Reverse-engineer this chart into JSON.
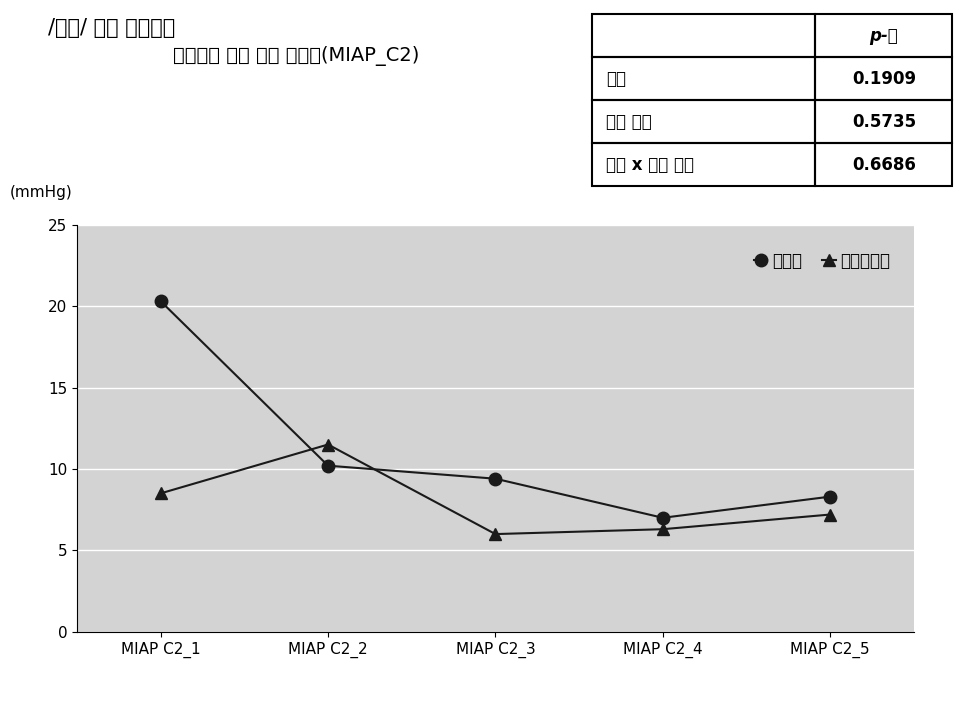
{
  "title_line1": "/암파/ 연속 음절과제",
  "title_line2": "초성자음 압력 최대 상승점(MIAP_C2)",
  "ylabel": "(mmHg)",
  "xlabel_ticks": [
    "MIAP C2_1",
    "MIAP C2_2",
    "MIAP C2_3",
    "MIAP C2_4",
    "MIAP C2_5"
  ],
  "series1_name": "건청군",
  "series2_name": "청각장애군",
  "series1_values": [
    20.3,
    10.2,
    9.4,
    7.0,
    8.3
  ],
  "series2_values": [
    8.5,
    11.5,
    6.0,
    6.3,
    7.2
  ],
  "ylim": [
    0,
    25
  ],
  "yticks": [
    0,
    5,
    10,
    15,
    20,
    25
  ],
  "table_labels": [
    "집단",
    "반복 횟수",
    "집단 x 반복 횟수"
  ],
  "table_pvals": [
    "0.1909",
    "0.5735",
    "0.6686"
  ],
  "table_header_p": "p-값",
  "plot_bg_color": "#d3d3d3",
  "line_color": "#1a1a1a",
  "marker_size": 9,
  "grid_color": "#ffffff",
  "title_fontsize": 15,
  "tick_fontsize": 11,
  "legend_fontsize": 12,
  "table_fontsize": 12
}
